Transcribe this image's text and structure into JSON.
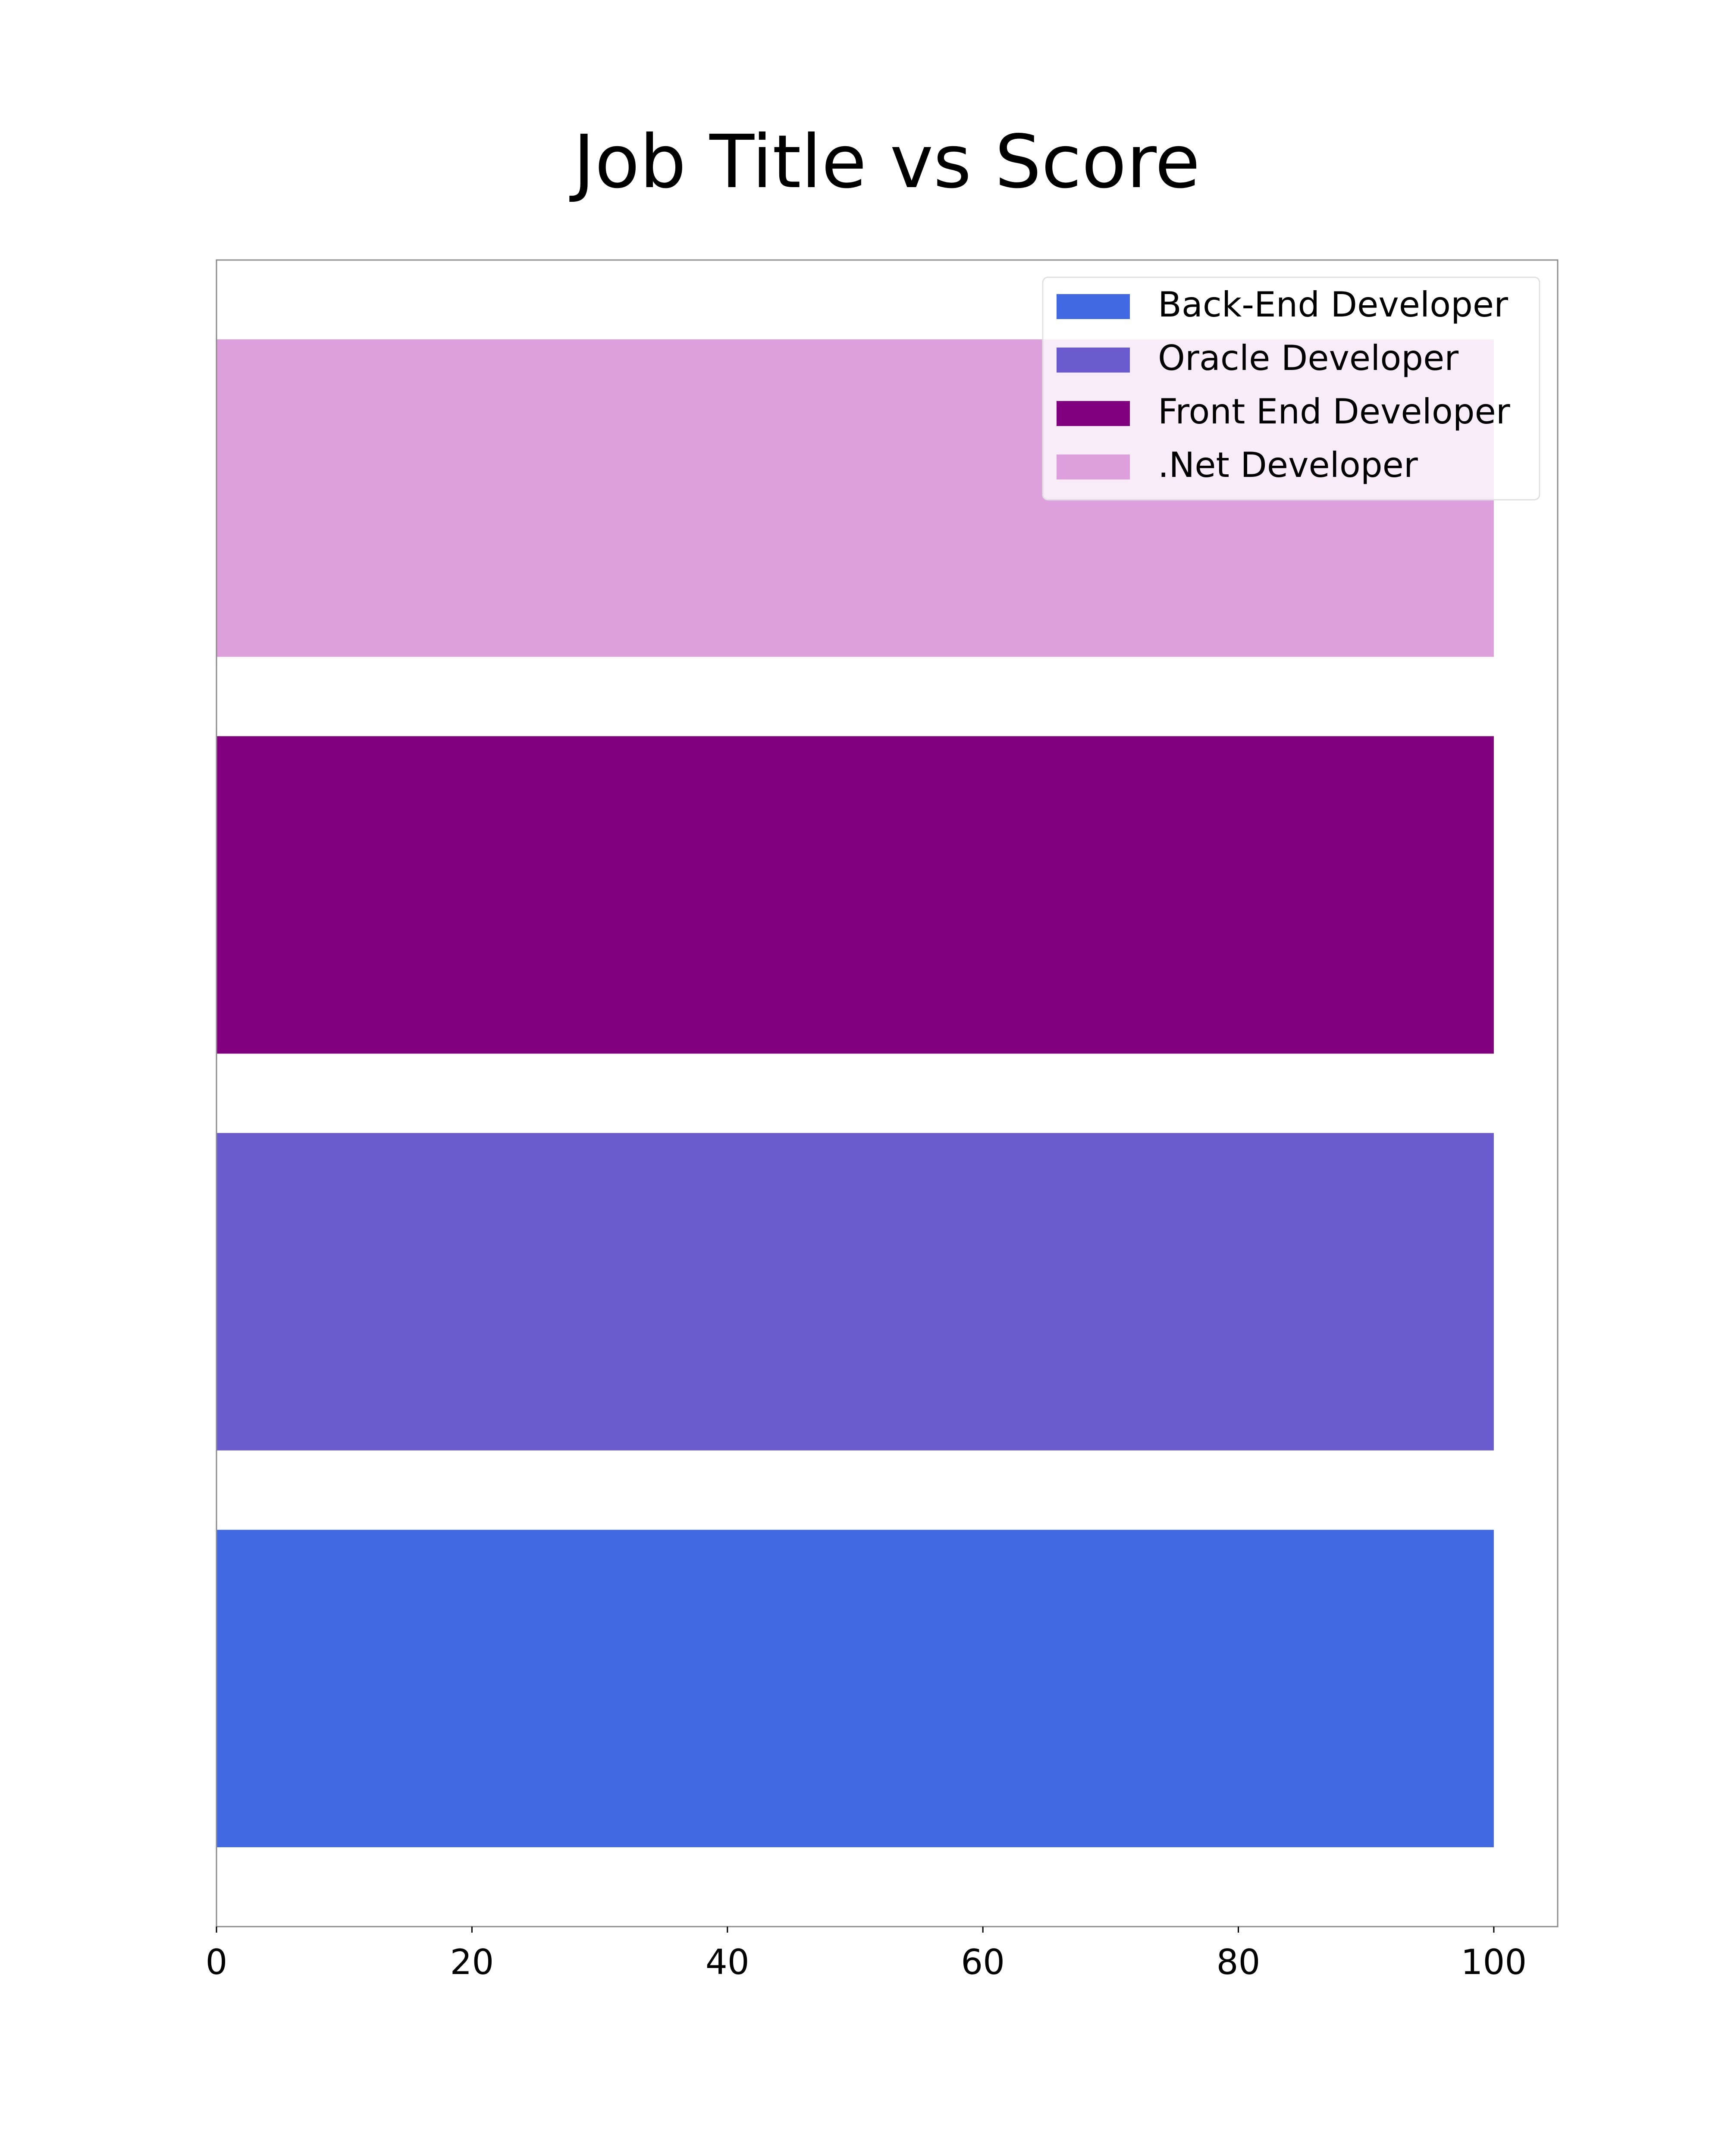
{
  "chart_data": {
    "type": "bar",
    "orientation": "horizontal",
    "title": "Job Title vs Score",
    "xlabel": "",
    "ylabel": "",
    "categories": [
      "Back-End Developer",
      "Oracle Developer",
      "Front End Developer",
      ".Net Developer"
    ],
    "values": [
      100,
      100,
      100,
      100
    ],
    "colors": [
      "#4169e1",
      "#6a5acd",
      "#800080",
      "#dda0dd"
    ],
    "xlim": [
      0,
      105
    ],
    "xticks": [
      0,
      20,
      40,
      60,
      80,
      100
    ],
    "xtick_labels": [
      "0",
      "20",
      "40",
      "60",
      "80",
      "100"
    ],
    "ytick_labels_shown": false,
    "grid": false,
    "legend": {
      "position": "top-right",
      "entries": [
        "Back-End Developer",
        "Oracle Developer",
        "Front End Developer",
        ".Net Developer"
      ]
    }
  }
}
